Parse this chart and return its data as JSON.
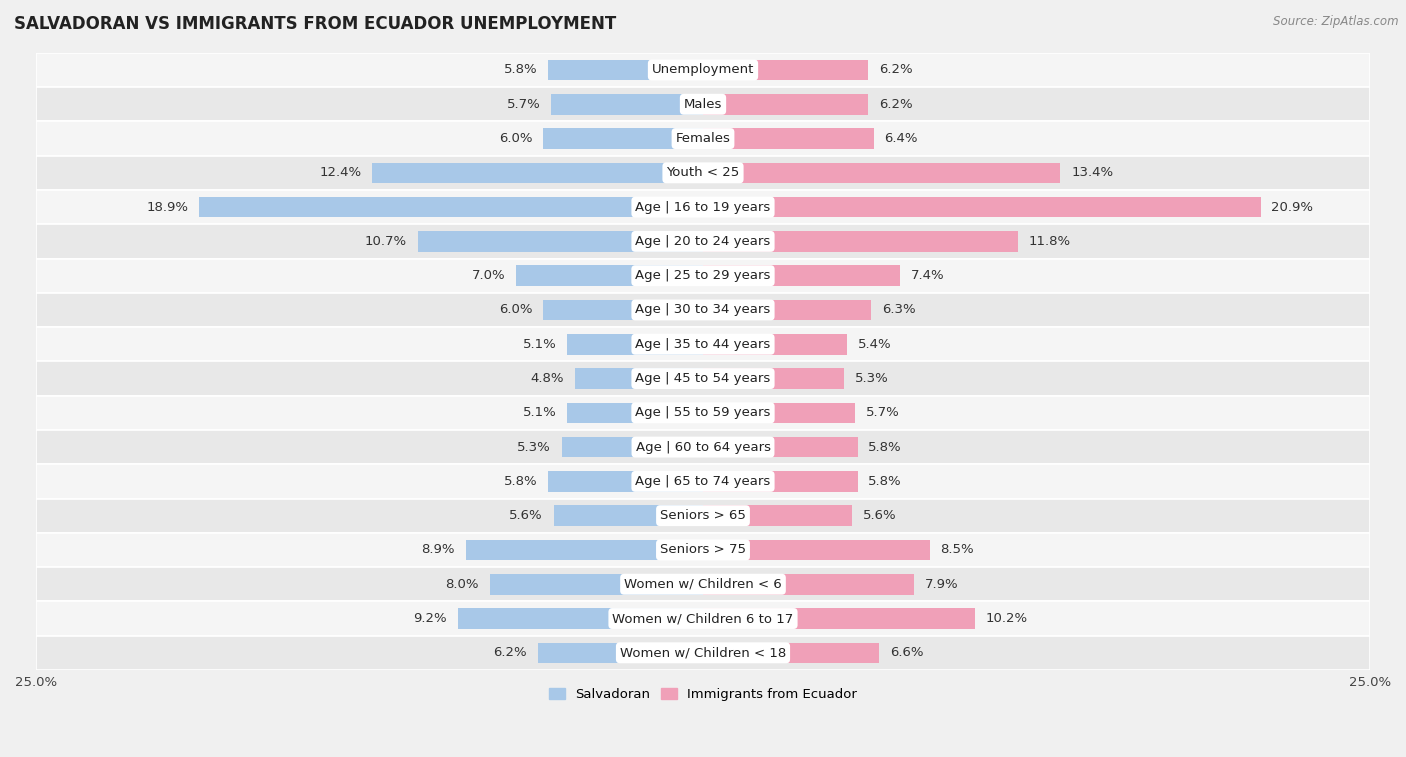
{
  "title": "SALVADORAN VS IMMIGRANTS FROM ECUADOR UNEMPLOYMENT",
  "source": "Source: ZipAtlas.com",
  "categories": [
    "Unemployment",
    "Males",
    "Females",
    "Youth < 25",
    "Age | 16 to 19 years",
    "Age | 20 to 24 years",
    "Age | 25 to 29 years",
    "Age | 30 to 34 years",
    "Age | 35 to 44 years",
    "Age | 45 to 54 years",
    "Age | 55 to 59 years",
    "Age | 60 to 64 years",
    "Age | 65 to 74 years",
    "Seniors > 65",
    "Seniors > 75",
    "Women w/ Children < 6",
    "Women w/ Children 6 to 17",
    "Women w/ Children < 18"
  ],
  "salvadoran": [
    5.8,
    5.7,
    6.0,
    12.4,
    18.9,
    10.7,
    7.0,
    6.0,
    5.1,
    4.8,
    5.1,
    5.3,
    5.8,
    5.6,
    8.9,
    8.0,
    9.2,
    6.2
  ],
  "ecuador": [
    6.2,
    6.2,
    6.4,
    13.4,
    20.9,
    11.8,
    7.4,
    6.3,
    5.4,
    5.3,
    5.7,
    5.8,
    5.8,
    5.6,
    8.5,
    7.9,
    10.2,
    6.6
  ],
  "salvadoran_color": "#a8c8e8",
  "ecuador_color": "#f0a0b8",
  "background_color": "#f0f0f0",
  "row_bg_even": "#f5f5f5",
  "row_bg_odd": "#e8e8e8",
  "axis_limit": 25.0,
  "label_fontsize": 9.5,
  "title_fontsize": 12,
  "source_fontsize": 8.5,
  "bar_height": 0.6,
  "center_label_bg": "#ffffff"
}
